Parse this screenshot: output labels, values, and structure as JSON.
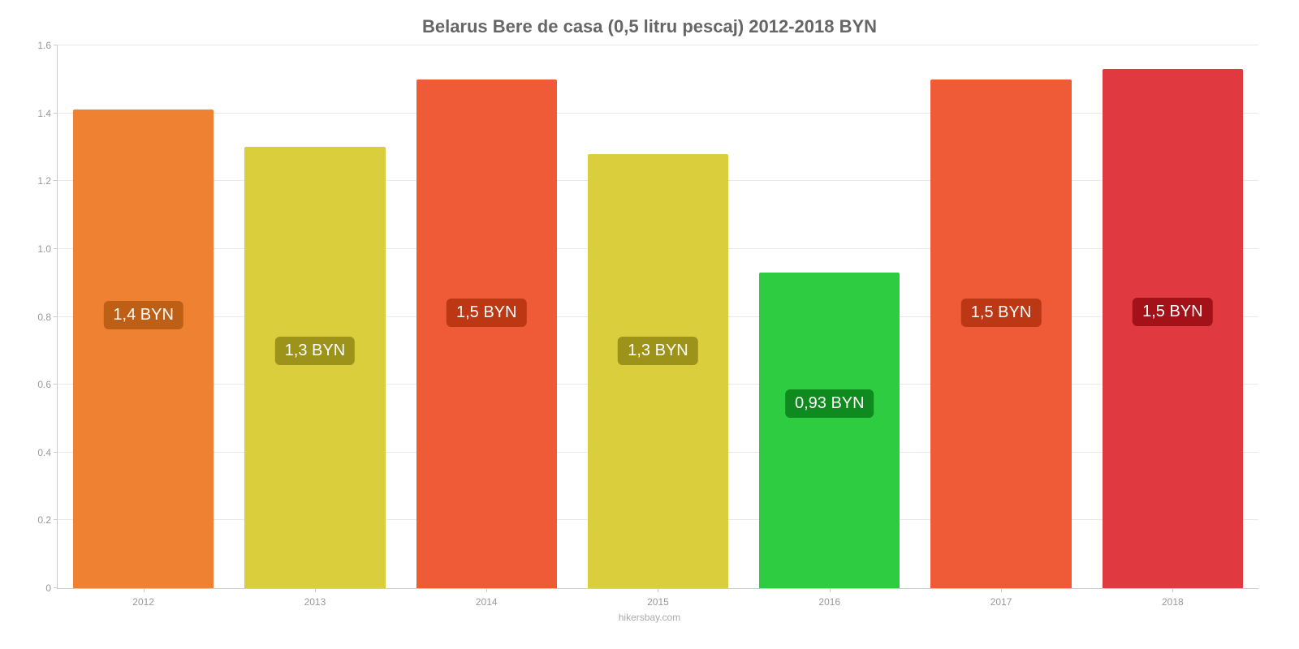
{
  "chart": {
    "type": "bar",
    "title": "Belarus Bere de casa (0,5 litru pescaj) 2012-2018 BYN",
    "title_color": "#666666",
    "title_fontsize": 22,
    "background_color": "#ffffff",
    "grid_color": "#e8e8e8",
    "axis_color": "#cccccc",
    "tick_label_color": "#999999",
    "tick_label_fontsize": 12,
    "footer": "hikersbay.com",
    "footer_color": "#aaaaaa",
    "y_axis": {
      "min": 0,
      "max": 1.6,
      "tick_step": 0.2,
      "ticks": [
        "0",
        "0.2",
        "0.4",
        "0.6",
        "0.8",
        "1.0",
        "1.2",
        "1.4",
        "1.6"
      ]
    },
    "categories": [
      "2012",
      "2013",
      "2014",
      "2015",
      "2016",
      "2017",
      "2018"
    ],
    "bars": [
      {
        "value": 1.41,
        "label": "1,4 BYN",
        "fill": "#ef8232",
        "label_bg": "#bd5f14",
        "label_top_pct": 40
      },
      {
        "value": 1.3,
        "label": "1,3 BYN",
        "fill": "#dbce3c",
        "label_bg": "#9d921a",
        "label_top_pct": 43
      },
      {
        "value": 1.5,
        "label": "1,5 BYN",
        "fill": "#ee5b36",
        "label_bg": "#bc3713",
        "label_top_pct": 43
      },
      {
        "value": 1.28,
        "label": "1,3 BYN",
        "fill": "#dbce3c",
        "label_bg": "#9d921a",
        "label_top_pct": 42
      },
      {
        "value": 0.93,
        "label": "0,93 BYN",
        "fill": "#2ecc40",
        "label_bg": "#0f8a1e",
        "label_top_pct": 37
      },
      {
        "value": 1.5,
        "label": "1,5 BYN",
        "fill": "#ee5b36",
        "label_bg": "#bc3713",
        "label_top_pct": 43
      },
      {
        "value": 1.53,
        "label": "1,5 BYN",
        "fill": "#e03940",
        "label_bg": "#a31218",
        "label_top_pct": 44
      }
    ],
    "bar_width_pct": 82,
    "bar_label_fontsize": 20
  }
}
